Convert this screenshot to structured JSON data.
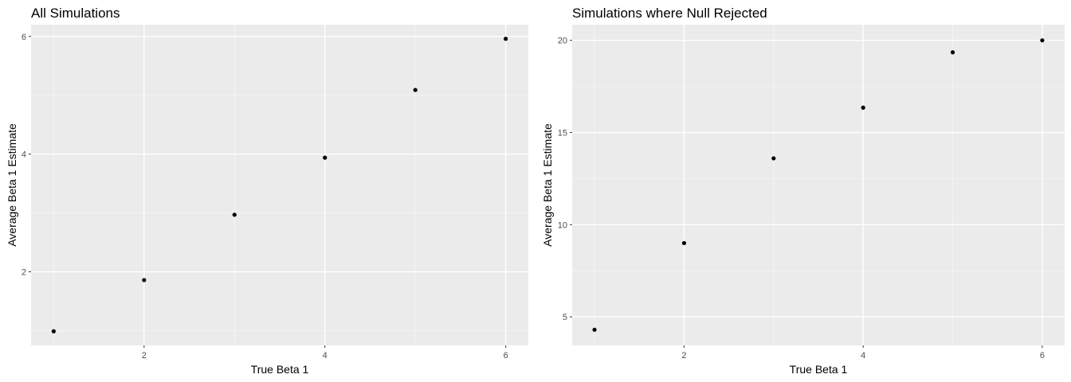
{
  "chart_data": [
    {
      "type": "scatter",
      "title": "All Simulations",
      "xlabel": "True Beta 1",
      "ylabel": "Average Beta 1 Estimate",
      "x": [
        1,
        2,
        3,
        4,
        5,
        6
      ],
      "y": [
        0.99,
        1.86,
        2.97,
        3.94,
        5.09,
        5.96
      ],
      "xticks": [
        2,
        4,
        6
      ],
      "yticks": [
        2,
        4,
        6
      ],
      "xlim": [
        0.75,
        6.25
      ],
      "ylim": [
        0.75,
        6.2
      ],
      "grid": true,
      "point_color": "#000000",
      "panel_color": "#ebebeb"
    },
    {
      "type": "scatter",
      "title": "Simulations where Null Rejected",
      "xlabel": "True Beta 1",
      "ylabel": "Average Beta 1 Estimate",
      "x": [
        1,
        2,
        3,
        4,
        5,
        6
      ],
      "y": [
        4.3,
        9.0,
        13.6,
        16.35,
        19.35,
        20.0
      ],
      "xticks": [
        2,
        4,
        6
      ],
      "yticks": [
        5,
        10,
        15,
        20
      ],
      "xlim": [
        0.75,
        6.25
      ],
      "ylim": [
        3.45,
        20.85
      ],
      "grid": true,
      "point_color": "#000000",
      "panel_color": "#ebebeb"
    }
  ]
}
